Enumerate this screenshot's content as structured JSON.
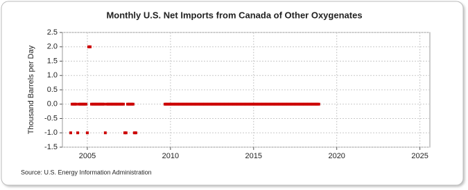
{
  "chart_data": {
    "type": "scatter",
    "title": "Monthly U.S. Net Imports from Canada of Other Oxygenates",
    "y_label": "Thousand Barrels per Day",
    "source": "Source: U.S. Energy Information Administration",
    "color": "#cc0000",
    "grid": true,
    "xlim": [
      2003.5,
      2025.6
    ],
    "ylim": [
      -1.5,
      2.5
    ],
    "xticks": [
      2005,
      2010,
      2015,
      2020,
      2025
    ],
    "yticks": [
      -1.5,
      {
        "value": -1,
        "label": "-1.0"
      },
      -0.5,
      {
        "value": 0,
        "label": "0.0"
      },
      0.5,
      {
        "value": 1,
        "label": "1.0"
      },
      1.5,
      {
        "value": 2,
        "label": "2.0"
      },
      2.5
    ],
    "x": [
      2004,
      2004.08,
      2004.17,
      2004.25,
      2004.33,
      2004.42,
      2004.5,
      2004.58,
      2004.67,
      2004.75,
      2004.83,
      2004.92,
      2005,
      2005.08,
      2005.17,
      2005.25,
      2005.33,
      2005.42,
      2005.5,
      2005.58,
      2005.67,
      2005.75,
      2005.83,
      2005.92,
      2006,
      2006.08,
      2006.17,
      2006.25,
      2006.33,
      2006.42,
      2006.5,
      2006.58,
      2006.67,
      2006.75,
      2006.83,
      2006.92,
      2007,
      2007.08,
      2007.17,
      2007.25,
      2007.33,
      2007.42,
      2007.5,
      2007.58,
      2007.67,
      2007.75,
      2007.83,
      2007.92,
      2009.67,
      2009.75,
      2009.83,
      2009.92,
      2010,
      2010.08,
      2010.17,
      2010.25,
      2010.33,
      2010.42,
      2010.5,
      2010.58,
      2010.67,
      2010.75,
      2010.83,
      2010.92,
      2011,
      2011.08,
      2011.17,
      2011.25,
      2011.33,
      2011.42,
      2011.5,
      2011.58,
      2011.67,
      2011.75,
      2011.83,
      2011.92,
      2012,
      2012.08,
      2012.17,
      2012.25,
      2012.33,
      2012.42,
      2012.5,
      2012.58,
      2012.67,
      2012.75,
      2012.83,
      2012.92,
      2013,
      2013.08,
      2013.17,
      2013.25,
      2013.33,
      2013.42,
      2013.5,
      2013.58,
      2013.67,
      2013.75,
      2013.83,
      2013.92,
      2014,
      2014.08,
      2014.17,
      2014.25,
      2014.33,
      2014.42,
      2014.5,
      2014.58,
      2014.67,
      2014.75,
      2014.83,
      2014.92,
      2015,
      2015.08,
      2015.17,
      2015.25,
      2015.33,
      2015.42,
      2015.5,
      2015.58,
      2015.67,
      2015.75,
      2015.83,
      2015.92,
      2016,
      2016.08,
      2016.17,
      2016.25,
      2016.33,
      2016.42,
      2016.5,
      2016.58,
      2016.67,
      2016.75,
      2016.83,
      2016.92,
      2017,
      2017.08,
      2017.17,
      2017.25,
      2017.33,
      2017.42,
      2017.5,
      2017.58,
      2017.67,
      2017.75,
      2017.83,
      2017.92,
      2018,
      2018.08,
      2018.17,
      2018.25,
      2018.33,
      2018.42,
      2018.5,
      2018.58,
      2018.67,
      2018.75,
      2018.83,
      2018.92
    ],
    "values": [
      -1,
      0,
      0,
      0,
      0,
      -1,
      0,
      0,
      0,
      0,
      0,
      0,
      -1,
      2,
      2,
      0,
      0,
      0,
      0,
      0,
      0,
      0,
      0,
      0,
      0,
      -1,
      0,
      0,
      0,
      0,
      0,
      0,
      0,
      0,
      0,
      0,
      0,
      0,
      0,
      -1,
      -1,
      0,
      0,
      0,
      0,
      0,
      -1,
      -1,
      0,
      0,
      0,
      0,
      0,
      0,
      0,
      0,
      0,
      0,
      0,
      0,
      0,
      0,
      0,
      0,
      0,
      0,
      0,
      0,
      0,
      0,
      0,
      0,
      0,
      0,
      0,
      0,
      0,
      0,
      0,
      0,
      0,
      0,
      0,
      0,
      0,
      0,
      0,
      0,
      0,
      0,
      0,
      0,
      0,
      0,
      0,
      0,
      0,
      0,
      0,
      0,
      0,
      0,
      0,
      0,
      0,
      0,
      0,
      0,
      0,
      0,
      0,
      0,
      0,
      0,
      0,
      0,
      0,
      0,
      0,
      0,
      0,
      0,
      0,
      0,
      0,
      0,
      0,
      0,
      0,
      0,
      0,
      0,
      0,
      0,
      0,
      0,
      0,
      0,
      0,
      0,
      0,
      0,
      0,
      0,
      0,
      0,
      0,
      0,
      0,
      0,
      0,
      0,
      0,
      0,
      0,
      0,
      0,
      0,
      0,
      0
    ]
  }
}
